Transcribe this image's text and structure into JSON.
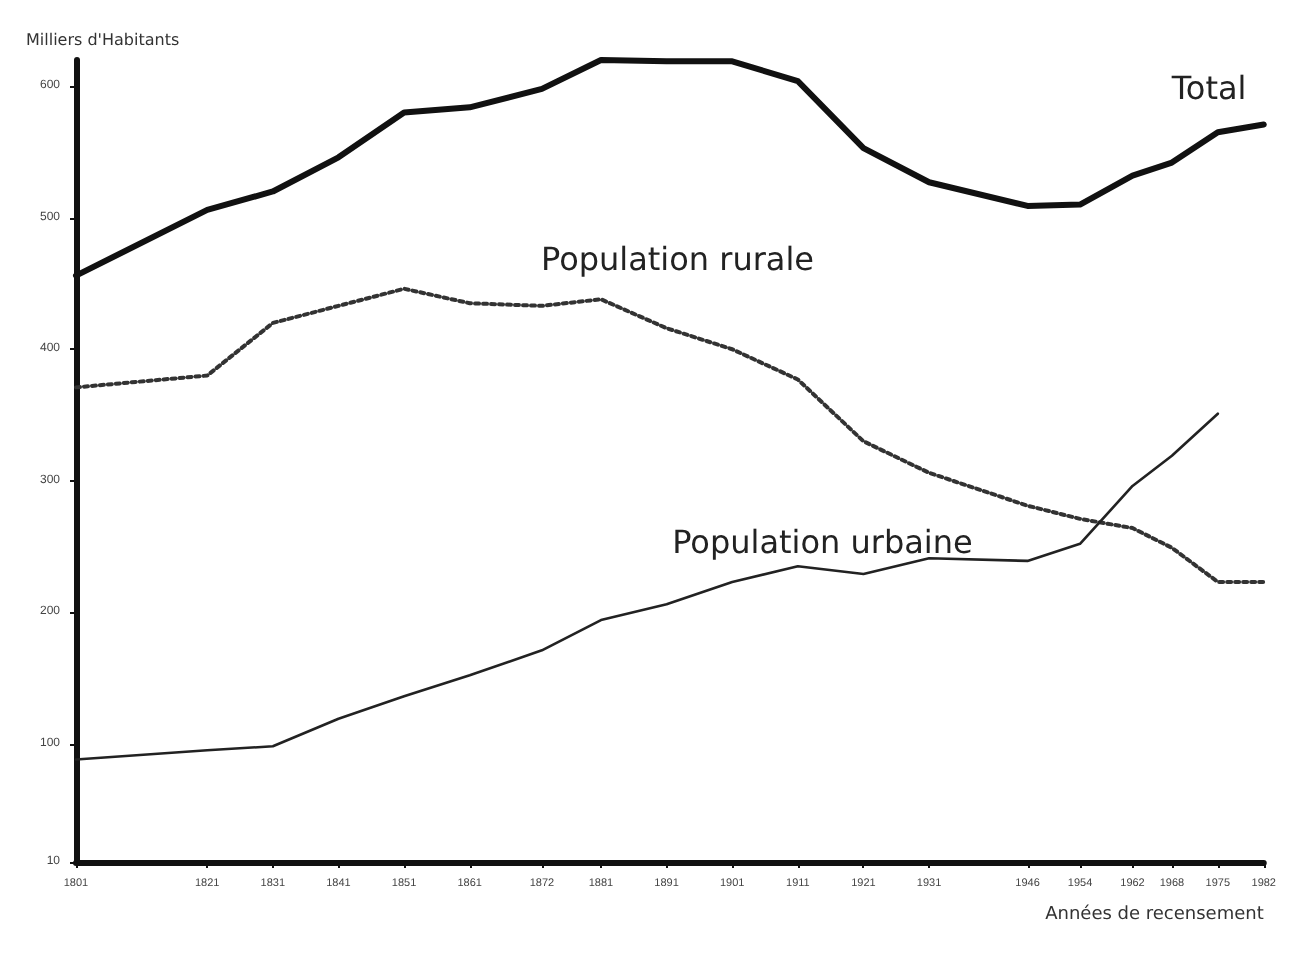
{
  "chart_data": {
    "type": "line",
    "ylabel": "Milliers d'Habitants",
    "xlabel": "Années de recensement",
    "x": [
      1801,
      1821,
      1831,
      1841,
      1851,
      1861,
      1872,
      1881,
      1891,
      1901,
      1911,
      1921,
      1931,
      1946,
      1954,
      1962,
      1968,
      1975,
      1982
    ],
    "series": [
      {
        "name": "Total",
        "color": "#111111",
        "line_style": "solid",
        "values": [
          456,
          506,
          520,
          546,
          580,
          584,
          598,
          620,
          619,
          619,
          604,
          553,
          527,
          509,
          510,
          532,
          542,
          565,
          571
        ]
      },
      {
        "name": "Population rurale",
        "color": "#333333",
        "line_style": "dotted",
        "values": [
          371,
          380,
          420,
          433,
          446,
          435,
          433,
          438,
          416,
          400,
          377,
          330,
          306,
          281,
          271,
          264,
          249,
          223,
          223
        ]
      },
      {
        "name": "Population urbaine",
        "color": "#222222",
        "line_style": "solid",
        "values": [
          88,
          95,
          98,
          119,
          136,
          152,
          171,
          194,
          206,
          223,
          235,
          229,
          241,
          239,
          252,
          296,
          319,
          351,
          null
        ]
      }
    ],
    "xlim": [
      1801,
      1982
    ],
    "xticks": [
      1801,
      1821,
      1831,
      1841,
      1851,
      1861,
      1872,
      1881,
      1891,
      1901,
      1911,
      1921,
      1931,
      1946,
      1954,
      1962,
      1968,
      1975,
      1982
    ],
    "ylim": [
      10,
      620
    ],
    "yticks": [
      10,
      100,
      200,
      300,
      400,
      500,
      600
    ],
    "grid": false,
    "legend": false,
    "marker": "none"
  }
}
